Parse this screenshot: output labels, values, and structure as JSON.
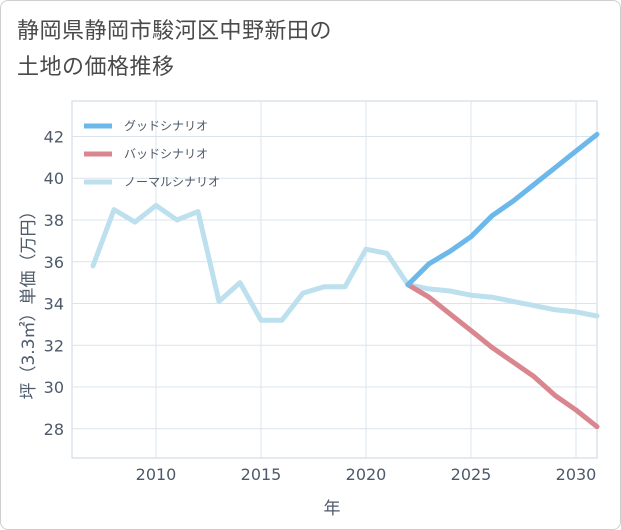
{
  "title": {
    "line1": "静岡県静岡市駿河区中野新田の",
    "line2": "土地の価格推移"
  },
  "chart_data": {
    "type": "line",
    "xlabel": "年",
    "ylabel": "坪（3.3㎡）単価（万円）",
    "xlim": [
      2006,
      2031
    ],
    "ylim": [
      26.6,
      43.7
    ],
    "x_ticks": [
      2010,
      2015,
      2020,
      2025,
      2030
    ],
    "y_ticks": [
      28,
      30,
      32,
      34,
      36,
      38,
      40,
      42
    ],
    "grid": true,
    "legend_position": "top-left",
    "series": [
      {
        "name": "グッドシナリオ",
        "color": "#6cb8ea",
        "x": [
          2022,
          2023,
          2024,
          2025,
          2026,
          2027,
          2028,
          2029,
          2030,
          2031
        ],
        "y": [
          34.9,
          35.9,
          36.5,
          37.2,
          38.2,
          38.9,
          39.7,
          40.5,
          41.3,
          42.1
        ]
      },
      {
        "name": "バッドシナリオ",
        "color": "#d9868f",
        "x": [
          2022,
          2023,
          2024,
          2025,
          2026,
          2027,
          2028,
          2029,
          2030,
          2031
        ],
        "y": [
          34.9,
          34.3,
          33.5,
          32.7,
          31.9,
          31.2,
          30.5,
          29.6,
          28.9,
          28.1
        ]
      },
      {
        "name": "ノーマルシナリオ",
        "color": "#bde0ee",
        "x": [
          2007,
          2008,
          2009,
          2010,
          2011,
          2012,
          2013,
          2014,
          2015,
          2016,
          2017,
          2018,
          2019,
          2020,
          2021,
          2022,
          2023,
          2024,
          2025,
          2026,
          2027,
          2028,
          2029,
          2030,
          2031
        ],
        "y": [
          35.8,
          38.5,
          37.9,
          38.7,
          38.0,
          38.4,
          34.1,
          35.0,
          33.2,
          33.2,
          34.5,
          34.8,
          34.8,
          36.6,
          36.4,
          34.9,
          34.7,
          34.6,
          34.4,
          34.3,
          34.1,
          33.9,
          33.7,
          33.6,
          33.4
        ]
      }
    ]
  }
}
